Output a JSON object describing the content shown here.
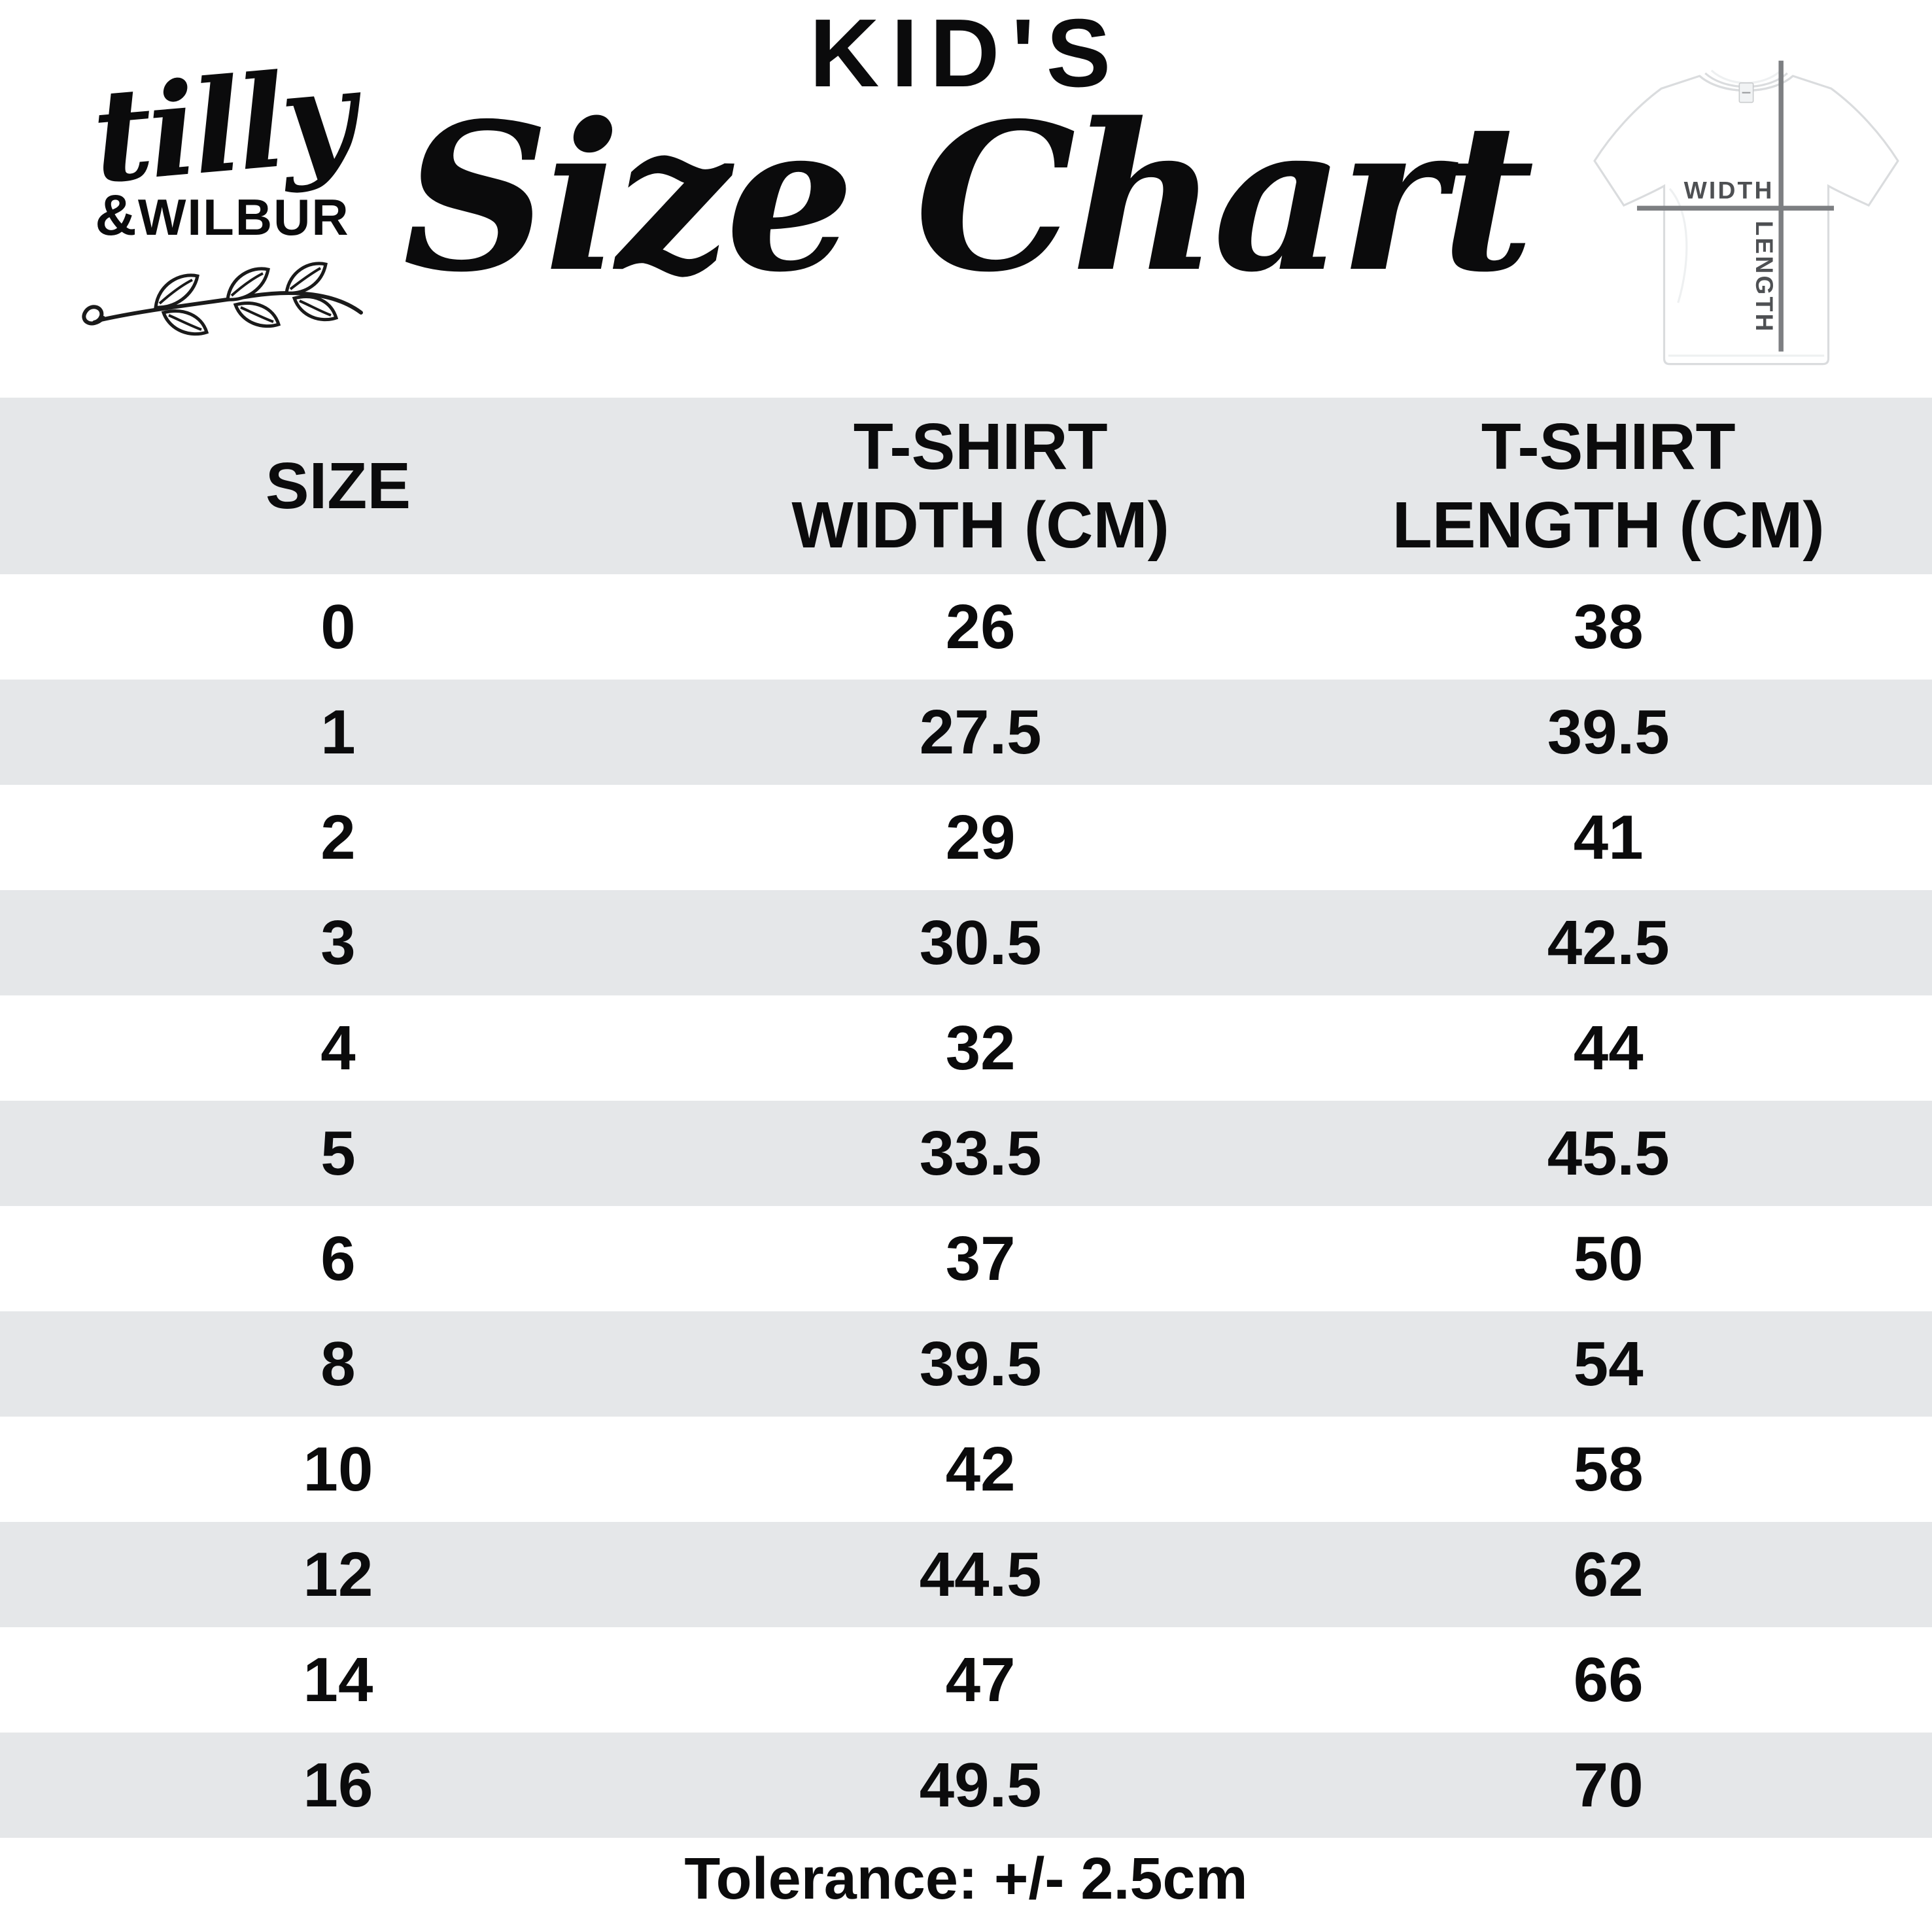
{
  "brand": {
    "script": "tilly",
    "amp": "&",
    "caps": "WILBUR"
  },
  "title": {
    "kicker": "KID'S",
    "main": "Size Chart"
  },
  "tshirt_diagram": {
    "width_label": "WIDTH",
    "length_label": "LENGTH"
  },
  "chart_data": {
    "type": "table",
    "title": "KID'S Size Chart",
    "columns": [
      "SIZE",
      "T-SHIRT\nWIDTH (CM)",
      "T-SHIRT\nLENGTH (CM)"
    ],
    "rows": [
      [
        "0",
        "26",
        "38"
      ],
      [
        "1",
        "27.5",
        "39.5"
      ],
      [
        "2",
        "29",
        "41"
      ],
      [
        "3",
        "30.5",
        "42.5"
      ],
      [
        "4",
        "32",
        "44"
      ],
      [
        "5",
        "33.5",
        "45.5"
      ],
      [
        "6",
        "37",
        "50"
      ],
      [
        "8",
        "39.5",
        "54"
      ],
      [
        "10",
        "42",
        "58"
      ],
      [
        "12",
        "44.5",
        "62"
      ],
      [
        "14",
        "47",
        "66"
      ],
      [
        "16",
        "49.5",
        "70"
      ]
    ],
    "footnote": "Tolerance: +/- 2.5cm"
  },
  "colors": {
    "stripe": "#e5e7e9",
    "text": "#0b0b0c",
    "line_gray": "#7d7f82",
    "label_gray": "#4e5053"
  }
}
